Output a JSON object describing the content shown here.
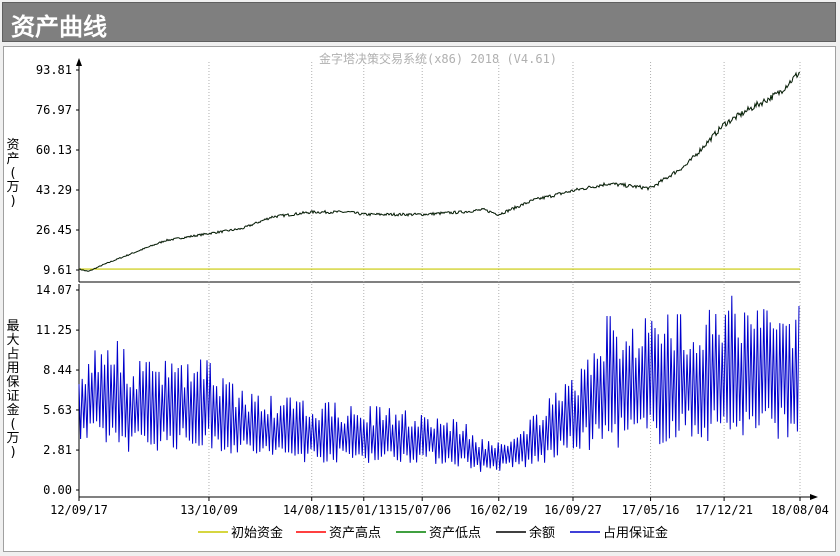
{
  "window": {
    "title": "资产曲线"
  },
  "chart_data": [
    {
      "type": "line",
      "title": "金字塔决策交易系统(x86) 2018 (V4.61)",
      "ylabel": "资产(万)",
      "ylim": [
        0,
        95
      ],
      "yticks": [
        "93.81",
        "76.97",
        "60.13",
        "43.29",
        "26.45",
        "9.61"
      ],
      "ytick_values": [
        93.81,
        76.97,
        60.13,
        43.29,
        26.45,
        9.61
      ],
      "series": [
        {
          "name": "初始资金",
          "color": "#c8c800",
          "values": [
            10,
            10
          ]
        },
        {
          "name": "余额",
          "color": "#000000",
          "x": [
            "12/09/17",
            "12/10/15",
            "12/12/01",
            "13/03/01",
            "13/06/01",
            "13/10/09",
            "14/01/15",
            "14/04/15",
            "14/08/11",
            "14/12/01",
            "15/01/13",
            "15/04/01",
            "15/07/06",
            "15/11/01",
            "16/01/05",
            "16/02/19",
            "16/06/01",
            "16/09/27",
            "17/01/10",
            "17/05/16",
            "17/09/01",
            "17/12/21",
            "18/03/15",
            "18/06/01",
            "18/08/04"
          ],
          "values": [
            10,
            9,
            12,
            17,
            22,
            25,
            27,
            32,
            34,
            34,
            33,
            33,
            33,
            34,
            35,
            33,
            39,
            43,
            46,
            44,
            54,
            71,
            78,
            84,
            93
          ]
        }
      ]
    },
    {
      "type": "line",
      "ylabel": "最大占用保证金(万)",
      "ylim": [
        0,
        14.07
      ],
      "yticks": [
        "14.07",
        "11.25",
        "8.44",
        "5.63",
        "2.81",
        "0.00"
      ],
      "ytick_values": [
        14.07,
        11.25,
        8.44,
        5.63,
        2.81,
        0.0
      ],
      "xticks": [
        "12/09/17",
        "13/10/09",
        "14/08/11",
        "15/01/13",
        "15/07/06",
        "16/02/19",
        "16/09/27",
        "17/05/16",
        "17/12/21",
        "18/08/04"
      ],
      "series": [
        {
          "name": "占用保证金",
          "color": "#0000cc",
          "x": [
            "12/09/17",
            "12/12/01",
            "13/03/01",
            "13/06/01",
            "13/10/09",
            "14/01/15",
            "14/04/15",
            "14/08/11",
            "14/12/01",
            "15/01/13",
            "15/04/01",
            "15/07/06",
            "15/11/01",
            "16/01/05",
            "16/02/19",
            "16/06/01",
            "16/09/27",
            "17/01/10",
            "17/05/16",
            "17/09/01",
            "17/12/21",
            "18/03/15",
            "18/06/01",
            "18/08/04"
          ],
          "low": [
            3.0,
            3.0,
            2.6,
            2.8,
            2.8,
            2.4,
            2.1,
            1.9,
            1.9,
            1.9,
            1.9,
            1.9,
            1.6,
            1.2,
            1.3,
            1.5,
            2.6,
            2.9,
            3.1,
            3.3,
            3.4,
            3.6,
            3.6,
            3.6
          ],
          "high": [
            8.6,
            11.5,
            9.2,
            9.2,
            9.2,
            7.2,
            6.6,
            6.4,
            6.0,
            6.0,
            5.8,
            5.6,
            5.0,
            3.6,
            3.4,
            5.4,
            8.0,
            12.4,
            12.4,
            12.6,
            14.07,
            13.0,
            13.2,
            13.3
          ]
        }
      ]
    }
  ],
  "legend": [
    {
      "label": "初始资金",
      "color": "#c8c800"
    },
    {
      "label": "资产高点",
      "color": "#ff0000"
    },
    {
      "label": "资产低点",
      "color": "#008000"
    },
    {
      "label": "余额",
      "color": "#000000"
    },
    {
      "label": "占用保证金",
      "color": "#0000cc"
    }
  ]
}
